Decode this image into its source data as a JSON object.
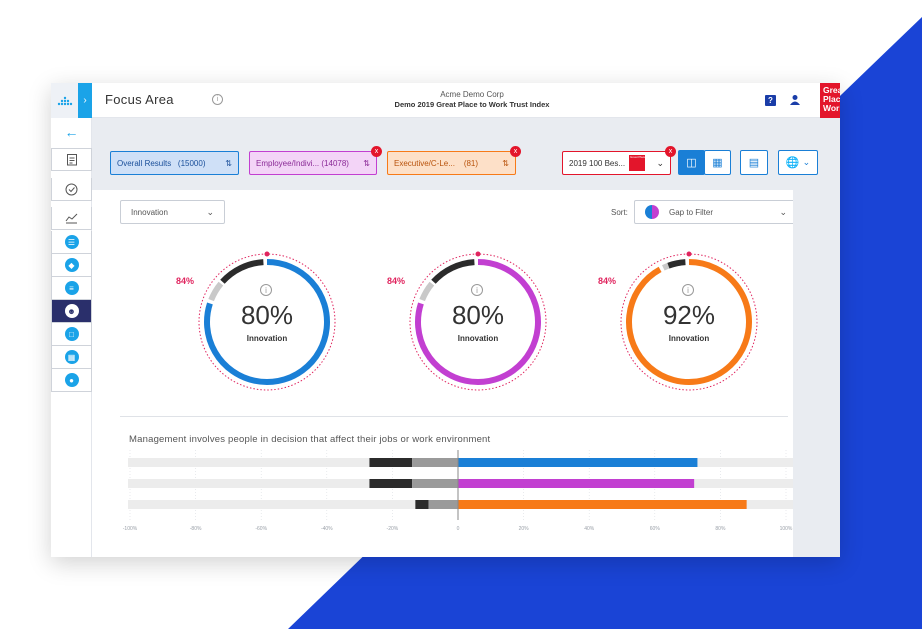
{
  "header": {
    "page_title": "Focus Area",
    "company": "Acme Demo Corp",
    "survey": "Demo 2019 Great Place to Work Trust Index",
    "logo_text": "Great Place To Work."
  },
  "sidebar": {
    "items": [
      "survey-report-icon",
      "check-circle-icon",
      "trend-chart-icon",
      "list-icon",
      "layers-icon",
      "checklist-icon",
      "people-icon",
      "chat-icon",
      "comparison-icon",
      "person-icon"
    ],
    "active_index": 6
  },
  "filters": {
    "chips": [
      {
        "label": "Overall Results",
        "count": "(15000)",
        "color": "#1a7fd6"
      },
      {
        "label": "Employee/Indivi...",
        "count": "(14078)",
        "color": "#c23fd1"
      },
      {
        "label": "Executive/C-Le...",
        "count": "(81)",
        "color": "#f77a18"
      }
    ],
    "benchmark": "2019 100 Bes...",
    "benchmark_logo_text": "Great Place To Work."
  },
  "controls": {
    "category_dropdown": "Innovation",
    "sort_label": "Sort:",
    "sort_value": "Gap to Filter"
  },
  "donuts": [
    {
      "value": "80%",
      "fraction": 0.8,
      "label": "Innovation",
      "benchmark": "84%",
      "color": "#1a7fd6"
    },
    {
      "value": "80%",
      "fraction": 0.8,
      "label": "Innovation",
      "benchmark": "84%",
      "color": "#c23fd1"
    },
    {
      "value": "92%",
      "fraction": 0.92,
      "label": "Innovation",
      "benchmark": "84%",
      "color": "#f77a18"
    }
  ],
  "question": "Management involves people in decision that affect their jobs or work environment",
  "chart_data": {
    "type": "bar",
    "orientation": "horizontal",
    "series": [
      {
        "name": "Overall Results",
        "positive": 73,
        "neutral": -14,
        "negative": -13,
        "label": "73%",
        "color": "#1a7fd6"
      },
      {
        "name": "Employee/Indivi...",
        "positive": 72,
        "neutral": -14,
        "negative": -13,
        "label": "72%",
        "color": "#c23fd1"
      },
      {
        "name": "Executive/C-Le...",
        "positive": 88,
        "neutral": -9,
        "negative": -4,
        "label": "88%",
        "color": "#f77a18"
      }
    ],
    "xticks": [
      "-100%",
      "-80%",
      "-60%",
      "-40%",
      "-20%",
      "0",
      "20%",
      "40%",
      "60%",
      "80%",
      "100%"
    ],
    "xlim": [
      -100,
      100
    ]
  }
}
